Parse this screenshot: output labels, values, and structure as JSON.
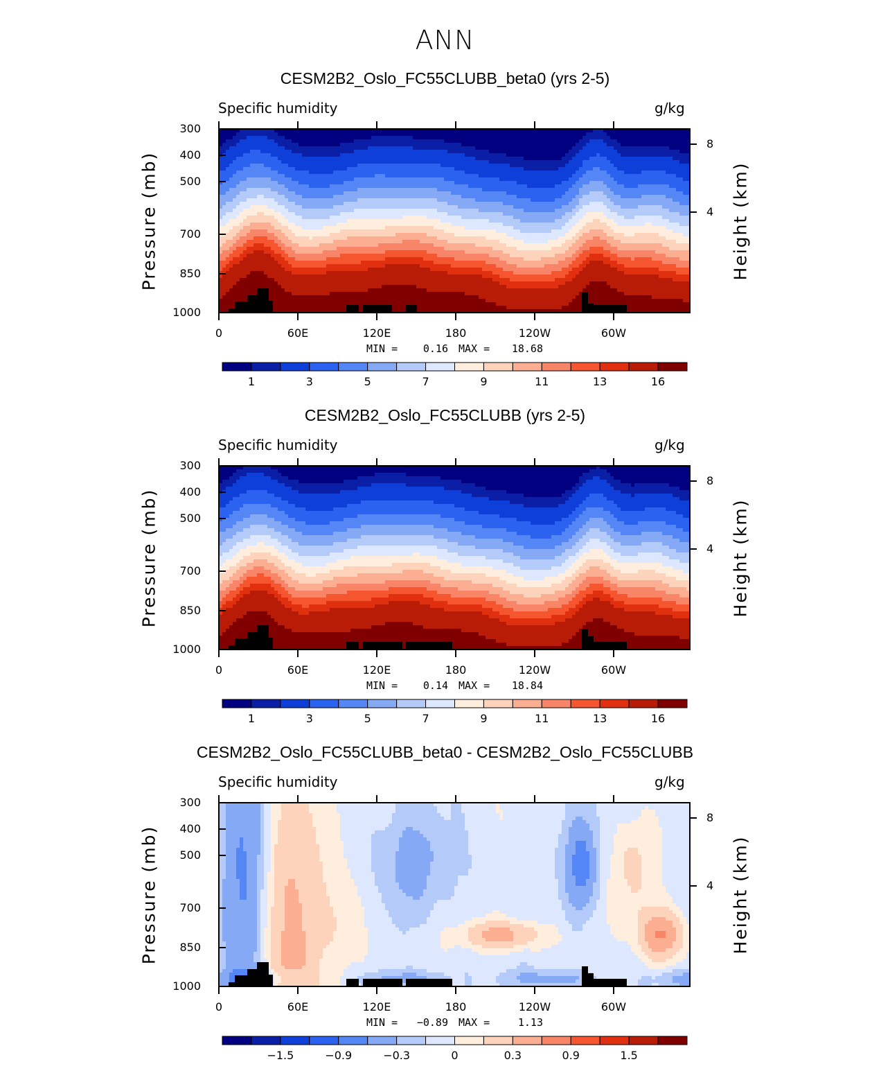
{
  "title": "ANN",
  "x_ticks": [
    "0",
    "60E",
    "120E",
    "180",
    "120W",
    "60W"
  ],
  "y_ticks": [
    "300",
    "400",
    "500",
    "700",
    "850",
    "1000"
  ],
  "y2_ticks": [
    "8",
    "4"
  ],
  "ylabel": "Pressure (mb)",
  "y2label": "Height (km)",
  "var_label": "Specific humidity",
  "units_label": "g/kg",
  "colors": {
    "full": [
      "#000080",
      "#0a1fa6",
      "#0e3fd8",
      "#2c62f0",
      "#5487f5",
      "#86a9f6",
      "#b4cbfa",
      "#dde8ff",
      "#ffeedd",
      "#fdd3bb",
      "#fbae92",
      "#f98568",
      "#f5562f",
      "#e0300f",
      "#b81b06",
      "#800000"
    ],
    "diff": [
      "#000080",
      "#0a1fa6",
      "#0e3fd8",
      "#2c62f0",
      "#5487f5",
      "#86a9f6",
      "#b4cbfa",
      "#dde8ff",
      "#ffeedd",
      "#fdd3bb",
      "#fbae92",
      "#f98568",
      "#f5562f",
      "#e0300f",
      "#b81b06",
      "#800000"
    ],
    "land": "#000000"
  },
  "chart_data": [
    {
      "type": "heatmap",
      "title": "CESM2B2_Oslo_FC55CLUBB_beta0 (yrs 2-5)",
      "variable": "Specific humidity",
      "units": "g/kg",
      "min_label": "MIN =",
      "min_value": "0.16",
      "max_label": "MAX =",
      "max_value": "18.68",
      "min": 0.16,
      "max": 18.68,
      "colorbar_labels": [
        "1",
        "3",
        "5",
        "7",
        "9",
        "11",
        "13",
        "16"
      ],
      "xlabel": "",
      "ylabel": "Pressure (mb)"
    },
    {
      "type": "heatmap",
      "title": "CESM2B2_Oslo_FC55CLUBB (yrs 2-5)",
      "variable": "Specific humidity",
      "units": "g/kg",
      "min_label": "MIN =",
      "min_value": "0.14",
      "max_label": "MAX =",
      "max_value": "18.84",
      "min": 0.14,
      "max": 18.84,
      "colorbar_labels": [
        "1",
        "3",
        "5",
        "7",
        "9",
        "11",
        "13",
        "16"
      ],
      "xlabel": "",
      "ylabel": "Pressure (mb)"
    },
    {
      "type": "heatmap",
      "title": "CESM2B2_Oslo_FC55CLUBB_beta0 - CESM2B2_Oslo_FC55CLUBB",
      "variable": "Specific humidity",
      "units": "g/kg",
      "min_label": "MIN =",
      "min_value": "−0.89",
      "max_label": "MAX =",
      "max_value": "1.13",
      "min": -0.89,
      "max": 1.13,
      "colorbar_labels": [
        "−1.5",
        "−0.9",
        "−0.3",
        "0",
        "0.3",
        "0.9",
        "1.5"
      ],
      "xlabel": "",
      "ylabel": "Pressure (mb)"
    }
  ]
}
